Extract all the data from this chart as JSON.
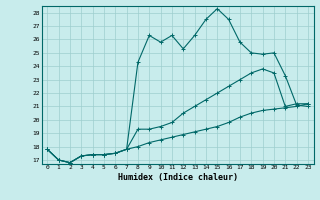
{
  "xlabel": "Humidex (Indice chaleur)",
  "background_color": "#c8ecec",
  "grid_color": "#9ecece",
  "line_color": "#006868",
  "xlim": [
    -0.5,
    23.5
  ],
  "ylim": [
    16.7,
    28.5
  ],
  "x_ticks": [
    0,
    1,
    2,
    3,
    4,
    5,
    6,
    7,
    8,
    9,
    10,
    11,
    12,
    13,
    14,
    15,
    16,
    17,
    18,
    19,
    20,
    21,
    22,
    23
  ],
  "y_ticks": [
    17,
    18,
    19,
    20,
    21,
    22,
    23,
    24,
    25,
    26,
    27,
    28
  ],
  "line3_x": [
    0,
    1,
    2,
    3,
    4,
    5,
    6,
    7,
    8,
    9,
    10,
    11,
    12,
    13,
    14,
    15,
    16,
    17,
    18,
    19,
    20,
    21,
    22,
    23
  ],
  "line3_y": [
    17.8,
    17.0,
    16.8,
    17.3,
    17.4,
    17.4,
    17.5,
    17.8,
    24.3,
    26.3,
    25.8,
    26.3,
    25.3,
    26.3,
    27.5,
    28.3,
    27.5,
    25.8,
    25.0,
    24.9,
    25.0,
    23.3,
    21.1,
    21.0
  ],
  "line2_x": [
    0,
    1,
    2,
    3,
    4,
    5,
    6,
    7,
    8,
    9,
    10,
    11,
    12,
    13,
    14,
    15,
    16,
    17,
    18,
    19,
    20,
    21,
    22,
    23
  ],
  "line2_y": [
    17.8,
    17.0,
    16.8,
    17.3,
    17.4,
    17.4,
    17.5,
    17.8,
    19.3,
    19.3,
    19.5,
    19.8,
    20.5,
    21.0,
    21.5,
    22.0,
    22.5,
    23.0,
    23.5,
    23.8,
    23.5,
    21.0,
    21.2,
    21.2
  ],
  "line1_x": [
    0,
    1,
    2,
    3,
    4,
    5,
    6,
    7,
    8,
    9,
    10,
    11,
    12,
    13,
    14,
    15,
    16,
    17,
    18,
    19,
    20,
    21,
    22,
    23
  ],
  "line1_y": [
    17.8,
    17.0,
    16.8,
    17.3,
    17.4,
    17.4,
    17.5,
    17.8,
    18.0,
    18.3,
    18.5,
    18.7,
    18.9,
    19.1,
    19.3,
    19.5,
    19.8,
    20.2,
    20.5,
    20.7,
    20.8,
    20.9,
    21.0,
    21.2
  ]
}
